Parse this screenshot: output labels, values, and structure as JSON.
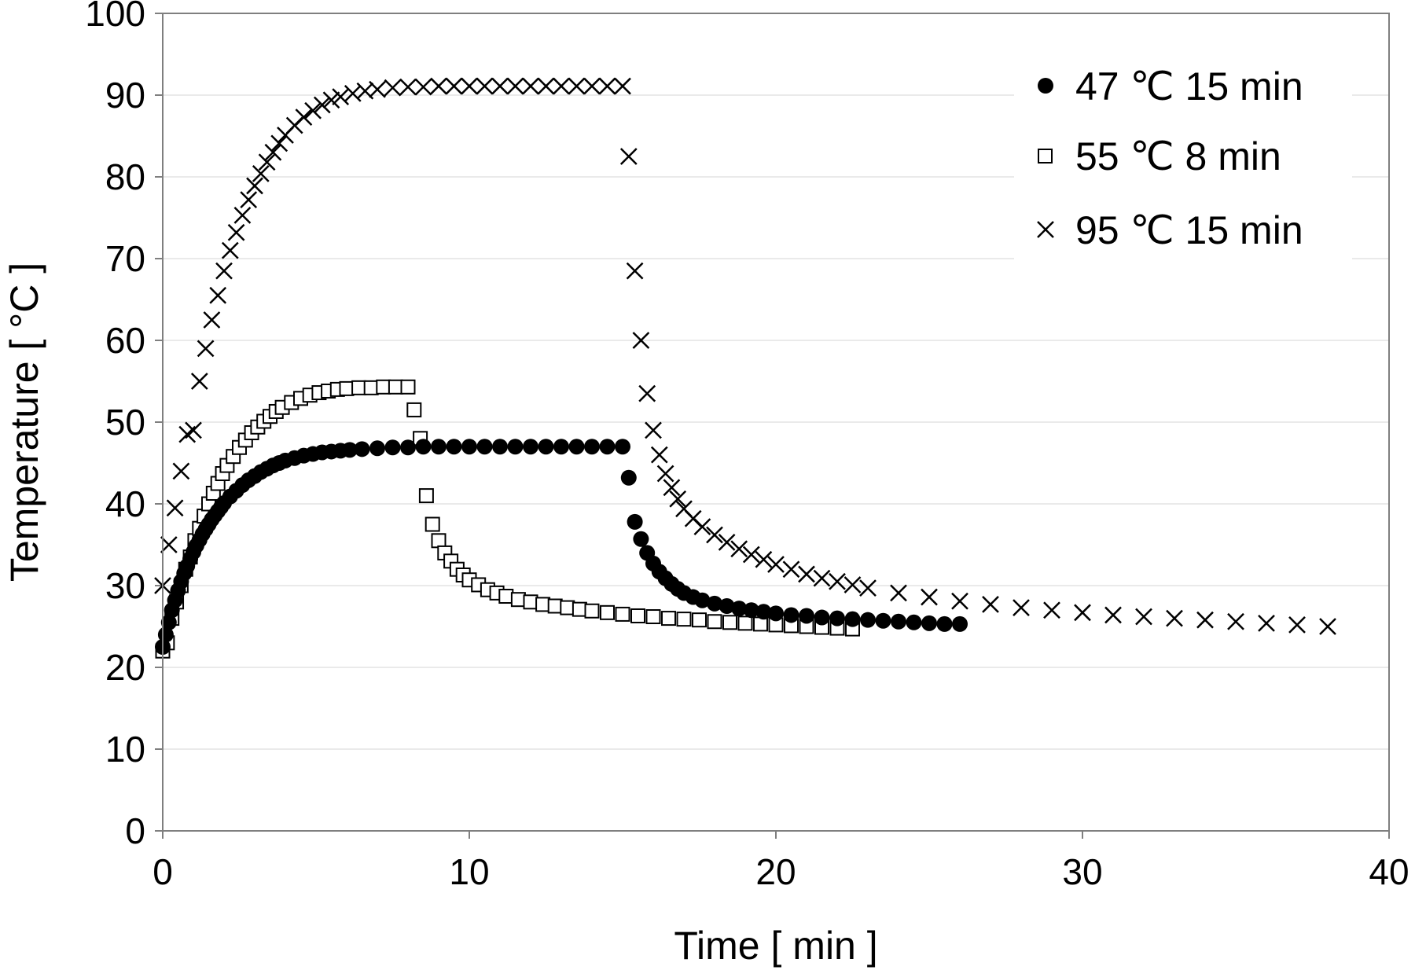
{
  "chart_data": {
    "type": "scatter",
    "title": "",
    "xlabel": "Time [ min ]",
    "ylabel": "Temperature [ °C ]",
    "xlim": [
      0,
      40
    ],
    "ylim": [
      0,
      100
    ],
    "x_ticks": [
      0,
      10,
      20,
      30,
      40
    ],
    "y_ticks": [
      0,
      10,
      20,
      30,
      40,
      50,
      60,
      70,
      80,
      90,
      100
    ],
    "grid": "horizontal",
    "legend_position": "top-right",
    "series": [
      {
        "name": "47 ℃ 15 min",
        "marker": "filled-circle",
        "color": "#000000",
        "points": [
          [
            0.0,
            22.5
          ],
          [
            0.1,
            24.0
          ],
          [
            0.2,
            25.5
          ],
          [
            0.3,
            27.0
          ],
          [
            0.4,
            28.2
          ],
          [
            0.5,
            29.4
          ],
          [
            0.6,
            30.5
          ],
          [
            0.7,
            31.5
          ],
          [
            0.8,
            32.4
          ],
          [
            0.9,
            33.3
          ],
          [
            1.0,
            34.1
          ],
          [
            1.1,
            34.9
          ],
          [
            1.2,
            35.6
          ],
          [
            1.3,
            36.3
          ],
          [
            1.4,
            36.9
          ],
          [
            1.5,
            37.5
          ],
          [
            1.6,
            38.1
          ],
          [
            1.7,
            38.6
          ],
          [
            1.8,
            39.1
          ],
          [
            1.9,
            39.6
          ],
          [
            2.0,
            40.1
          ],
          [
            2.2,
            40.9
          ],
          [
            2.4,
            41.6
          ],
          [
            2.6,
            42.3
          ],
          [
            2.8,
            42.9
          ],
          [
            3.0,
            43.4
          ],
          [
            3.2,
            43.9
          ],
          [
            3.4,
            44.3
          ],
          [
            3.6,
            44.7
          ],
          [
            3.8,
            45.0
          ],
          [
            4.0,
            45.3
          ],
          [
            4.3,
            45.6
          ],
          [
            4.6,
            45.9
          ],
          [
            4.9,
            46.1
          ],
          [
            5.2,
            46.3
          ],
          [
            5.5,
            46.4
          ],
          [
            5.8,
            46.5
          ],
          [
            6.1,
            46.6
          ],
          [
            6.5,
            46.7
          ],
          [
            7.0,
            46.8
          ],
          [
            7.5,
            46.9
          ],
          [
            8.0,
            46.9
          ],
          [
            8.5,
            47.0
          ],
          [
            9.0,
            47.0
          ],
          [
            9.5,
            47.0
          ],
          [
            10.0,
            47.0
          ],
          [
            10.5,
            47.0
          ],
          [
            11.0,
            47.0
          ],
          [
            11.5,
            47.0
          ],
          [
            12.0,
            47.0
          ],
          [
            12.5,
            47.0
          ],
          [
            13.0,
            47.0
          ],
          [
            13.5,
            47.0
          ],
          [
            14.0,
            47.0
          ],
          [
            14.5,
            47.0
          ],
          [
            15.0,
            47.0
          ],
          [
            15.2,
            43.2
          ],
          [
            15.4,
            37.8
          ],
          [
            15.6,
            35.7
          ],
          [
            15.8,
            34.0
          ],
          [
            16.0,
            32.7
          ],
          [
            16.2,
            31.7
          ],
          [
            16.4,
            30.9
          ],
          [
            16.6,
            30.2
          ],
          [
            16.8,
            29.6
          ],
          [
            17.0,
            29.1
          ],
          [
            17.3,
            28.6
          ],
          [
            17.6,
            28.2
          ],
          [
            18.0,
            27.8
          ],
          [
            18.4,
            27.5
          ],
          [
            18.8,
            27.2
          ],
          [
            19.2,
            27.0
          ],
          [
            19.6,
            26.8
          ],
          [
            20.0,
            26.6
          ],
          [
            20.5,
            26.4
          ],
          [
            21.0,
            26.3
          ],
          [
            21.5,
            26.1
          ],
          [
            22.0,
            26.0
          ],
          [
            22.5,
            25.9
          ],
          [
            23.0,
            25.8
          ],
          [
            23.5,
            25.7
          ],
          [
            24.0,
            25.6
          ],
          [
            24.5,
            25.5
          ],
          [
            25.0,
            25.4
          ],
          [
            25.5,
            25.3
          ],
          [
            26.0,
            25.3
          ]
        ]
      },
      {
        "name": "55 ℃ 8 min",
        "marker": "open-square",
        "color": "#000000",
        "points": [
          [
            0.0,
            22.0
          ],
          [
            0.15,
            23.0
          ],
          [
            0.3,
            26.0
          ],
          [
            0.45,
            28.0
          ],
          [
            0.6,
            30.0
          ],
          [
            0.75,
            32.0
          ],
          [
            0.9,
            33.5
          ],
          [
            1.05,
            35.5
          ],
          [
            1.2,
            37.0
          ],
          [
            1.35,
            38.5
          ],
          [
            1.5,
            40.0
          ],
          [
            1.65,
            41.3
          ],
          [
            1.8,
            42.5
          ],
          [
            1.95,
            43.7
          ],
          [
            2.1,
            44.7
          ],
          [
            2.3,
            45.8
          ],
          [
            2.5,
            46.9
          ],
          [
            2.7,
            47.8
          ],
          [
            2.9,
            48.7
          ],
          [
            3.1,
            49.4
          ],
          [
            3.3,
            50.1
          ],
          [
            3.5,
            50.7
          ],
          [
            3.7,
            51.3
          ],
          [
            3.9,
            51.8
          ],
          [
            4.2,
            52.4
          ],
          [
            4.5,
            52.9
          ],
          [
            4.8,
            53.3
          ],
          [
            5.1,
            53.6
          ],
          [
            5.4,
            53.8
          ],
          [
            5.7,
            54.0
          ],
          [
            6.0,
            54.1
          ],
          [
            6.4,
            54.2
          ],
          [
            6.8,
            54.2
          ],
          [
            7.2,
            54.3
          ],
          [
            7.6,
            54.3
          ],
          [
            8.0,
            54.3
          ],
          [
            8.2,
            51.5
          ],
          [
            8.4,
            48.0
          ],
          [
            8.6,
            41.0
          ],
          [
            8.8,
            37.5
          ],
          [
            9.0,
            35.5
          ],
          [
            9.2,
            34.0
          ],
          [
            9.4,
            33.0
          ],
          [
            9.6,
            32.0
          ],
          [
            9.8,
            31.3
          ],
          [
            10.0,
            30.7
          ],
          [
            10.3,
            30.1
          ],
          [
            10.6,
            29.5
          ],
          [
            10.9,
            29.1
          ],
          [
            11.2,
            28.7
          ],
          [
            11.6,
            28.3
          ],
          [
            12.0,
            28.0
          ],
          [
            12.4,
            27.7
          ],
          [
            12.8,
            27.5
          ],
          [
            13.2,
            27.3
          ],
          [
            13.6,
            27.1
          ],
          [
            14.0,
            26.9
          ],
          [
            14.5,
            26.7
          ],
          [
            15.0,
            26.5
          ],
          [
            15.5,
            26.3
          ],
          [
            16.0,
            26.2
          ],
          [
            16.5,
            26.0
          ],
          [
            17.0,
            25.9
          ],
          [
            17.5,
            25.8
          ],
          [
            18.0,
            25.6
          ],
          [
            18.5,
            25.5
          ],
          [
            19.0,
            25.4
          ],
          [
            19.5,
            25.3
          ],
          [
            20.0,
            25.2
          ],
          [
            20.5,
            25.1
          ],
          [
            21.0,
            25.0
          ],
          [
            21.5,
            24.9
          ],
          [
            22.0,
            24.8
          ],
          [
            22.5,
            24.7
          ]
        ]
      },
      {
        "name": "95 ℃ 15 min",
        "marker": "cross",
        "color": "#000000",
        "points": [
          [
            0.0,
            30.0
          ],
          [
            0.2,
            35.0
          ],
          [
            0.4,
            39.5
          ],
          [
            0.6,
            44.0
          ],
          [
            0.8,
            48.5
          ],
          [
            1.0,
            49.0
          ],
          [
            1.2,
            55.0
          ],
          [
            1.4,
            59.0
          ],
          [
            1.6,
            62.5
          ],
          [
            1.8,
            65.5
          ],
          [
            2.0,
            68.5
          ],
          [
            2.2,
            71.0
          ],
          [
            2.4,
            73.2
          ],
          [
            2.6,
            75.3
          ],
          [
            2.8,
            77.2
          ],
          [
            3.0,
            78.9
          ],
          [
            3.2,
            80.4
          ],
          [
            3.4,
            81.8
          ],
          [
            3.6,
            83.0
          ],
          [
            3.8,
            84.1
          ],
          [
            4.0,
            85.1
          ],
          [
            4.3,
            86.3
          ],
          [
            4.6,
            87.3
          ],
          [
            4.9,
            88.1
          ],
          [
            5.2,
            88.8
          ],
          [
            5.5,
            89.4
          ],
          [
            5.8,
            89.8
          ],
          [
            6.2,
            90.2
          ],
          [
            6.6,
            90.5
          ],
          [
            7.0,
            90.7
          ],
          [
            7.5,
            90.9
          ],
          [
            8.0,
            91.0
          ],
          [
            8.5,
            91.0
          ],
          [
            9.0,
            91.1
          ],
          [
            9.5,
            91.1
          ],
          [
            10.0,
            91.1
          ],
          [
            10.5,
            91.1
          ],
          [
            11.0,
            91.1
          ],
          [
            11.5,
            91.1
          ],
          [
            12.0,
            91.1
          ],
          [
            12.5,
            91.1
          ],
          [
            13.0,
            91.1
          ],
          [
            13.5,
            91.1
          ],
          [
            14.0,
            91.1
          ],
          [
            14.5,
            91.1
          ],
          [
            15.0,
            91.1
          ],
          [
            15.2,
            82.5
          ],
          [
            15.4,
            68.5
          ],
          [
            15.6,
            60.0
          ],
          [
            15.8,
            53.5
          ],
          [
            16.0,
            49.0
          ],
          [
            16.2,
            46.0
          ],
          [
            16.4,
            43.7
          ],
          [
            16.6,
            42.0
          ],
          [
            16.8,
            40.6
          ],
          [
            17.0,
            39.4
          ],
          [
            17.3,
            38.2
          ],
          [
            17.6,
            37.2
          ],
          [
            18.0,
            36.2
          ],
          [
            18.4,
            35.3
          ],
          [
            18.8,
            34.5
          ],
          [
            19.2,
            33.8
          ],
          [
            19.6,
            33.2
          ],
          [
            20.0,
            32.6
          ],
          [
            20.5,
            32.0
          ],
          [
            21.0,
            31.4
          ],
          [
            21.5,
            30.9
          ],
          [
            22.0,
            30.5
          ],
          [
            22.5,
            30.1
          ],
          [
            23.0,
            29.7
          ],
          [
            24.0,
            29.1
          ],
          [
            25.0,
            28.6
          ],
          [
            26.0,
            28.1
          ],
          [
            27.0,
            27.7
          ],
          [
            28.0,
            27.3
          ],
          [
            29.0,
            27.0
          ],
          [
            30.0,
            26.7
          ],
          [
            31.0,
            26.4
          ],
          [
            32.0,
            26.2
          ],
          [
            33.0,
            26.0
          ],
          [
            34.0,
            25.8
          ],
          [
            35.0,
            25.6
          ],
          [
            36.0,
            25.4
          ],
          [
            37.0,
            25.2
          ],
          [
            38.0,
            25.0
          ]
        ]
      }
    ]
  }
}
